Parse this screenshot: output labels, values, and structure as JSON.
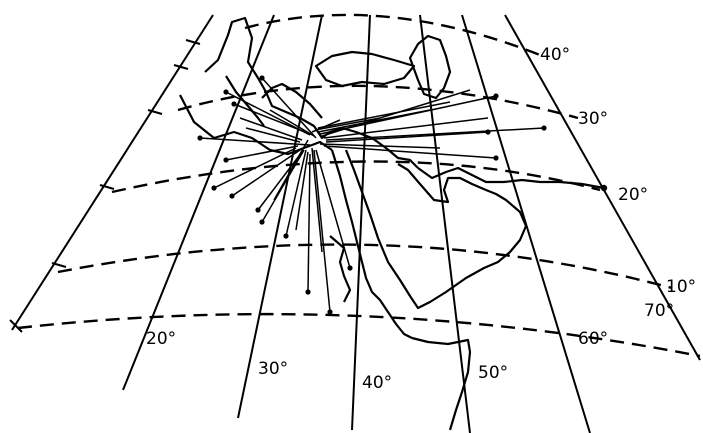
{
  "map": {
    "latitude_labels": [
      "40°",
      "30°",
      "20°",
      "10°"
    ],
    "longitude_labels": [
      "20°",
      "30°",
      "40°",
      "50°",
      "60°",
      "70°"
    ]
  }
}
